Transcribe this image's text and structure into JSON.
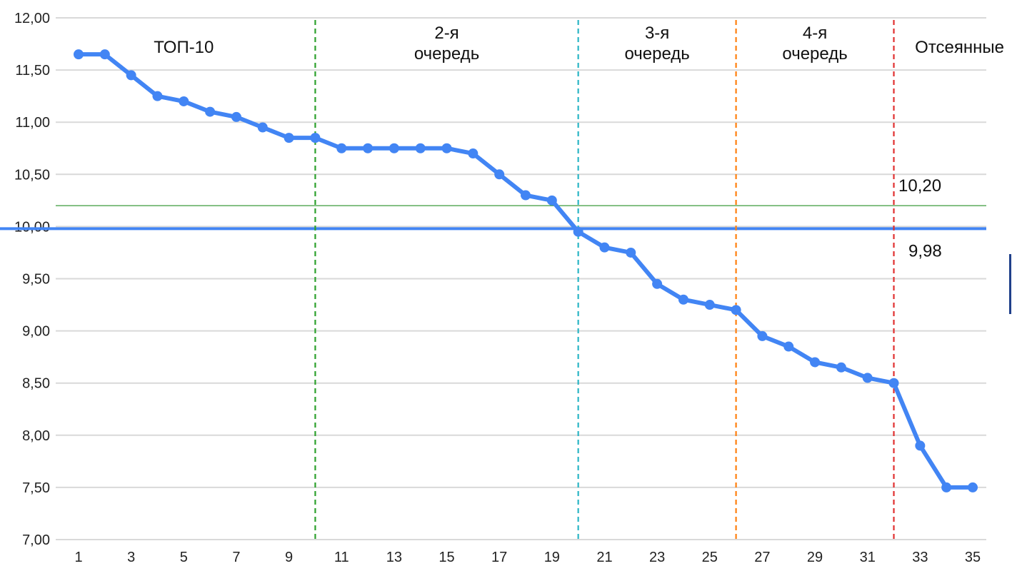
{
  "chart_data": {
    "type": "line",
    "x": [
      1,
      2,
      3,
      4,
      5,
      6,
      7,
      8,
      9,
      10,
      11,
      12,
      13,
      14,
      15,
      16,
      17,
      18,
      19,
      20,
      21,
      22,
      23,
      24,
      25,
      26,
      27,
      28,
      29,
      30,
      31,
      32,
      33,
      34,
      35
    ],
    "series": [
      {
        "values": [
          11.65,
          11.65,
          11.45,
          11.25,
          11.2,
          11.1,
          11.05,
          10.95,
          10.85,
          10.85,
          10.75,
          10.75,
          10.75,
          10.75,
          10.75,
          10.7,
          10.5,
          10.3,
          10.25,
          9.95,
          9.8,
          9.75,
          9.45,
          9.3,
          9.25,
          9.2,
          8.95,
          8.85,
          8.7,
          8.65,
          8.55,
          8.5,
          7.9,
          7.5,
          7.5
        ],
        "color": "#4285f4"
      }
    ],
    "ylim": [
      7.0,
      12.0
    ],
    "xlim": [
      1,
      35
    ],
    "y_ticks": [
      "7,00",
      "7,50",
      "8,00",
      "8,50",
      "9,00",
      "9,50",
      "10,00",
      "10,50",
      "11,00",
      "11,50",
      "12,00"
    ],
    "x_ticks": [
      "1",
      "3",
      "5",
      "7",
      "9",
      "11",
      "13",
      "15",
      "17",
      "19",
      "21",
      "23",
      "25",
      "27",
      "29",
      "31",
      "33",
      "35"
    ],
    "grid": true,
    "reference_lines": [
      {
        "y": 10.2,
        "label": "10,20",
        "color": "#3c9a3c"
      },
      {
        "y": 9.98,
        "label": "9,98",
        "color": "#4285f4"
      }
    ],
    "dividers": [
      {
        "x": 10,
        "color": "#2ca02c"
      },
      {
        "x": 20,
        "color": "#2ab5c5"
      },
      {
        "x": 26,
        "color": "#ff7f0e"
      },
      {
        "x": 32,
        "color": "#e03030"
      }
    ],
    "segment_labels": [
      {
        "lines": [
          "ТОП-10"
        ],
        "x_center": 5
      },
      {
        "lines": [
          "2-я",
          "очередь"
        ],
        "x_center": 15
      },
      {
        "lines": [
          "3-я",
          "очередь"
        ],
        "x_center": 23
      },
      {
        "lines": [
          "4-я",
          "очередь"
        ],
        "x_center": 29
      },
      {
        "lines": [
          "Отсеянные"
        ],
        "x_center": 34.5
      }
    ],
    "colors": {
      "grid": "#d9d9d9",
      "line": "#4285f4"
    }
  }
}
